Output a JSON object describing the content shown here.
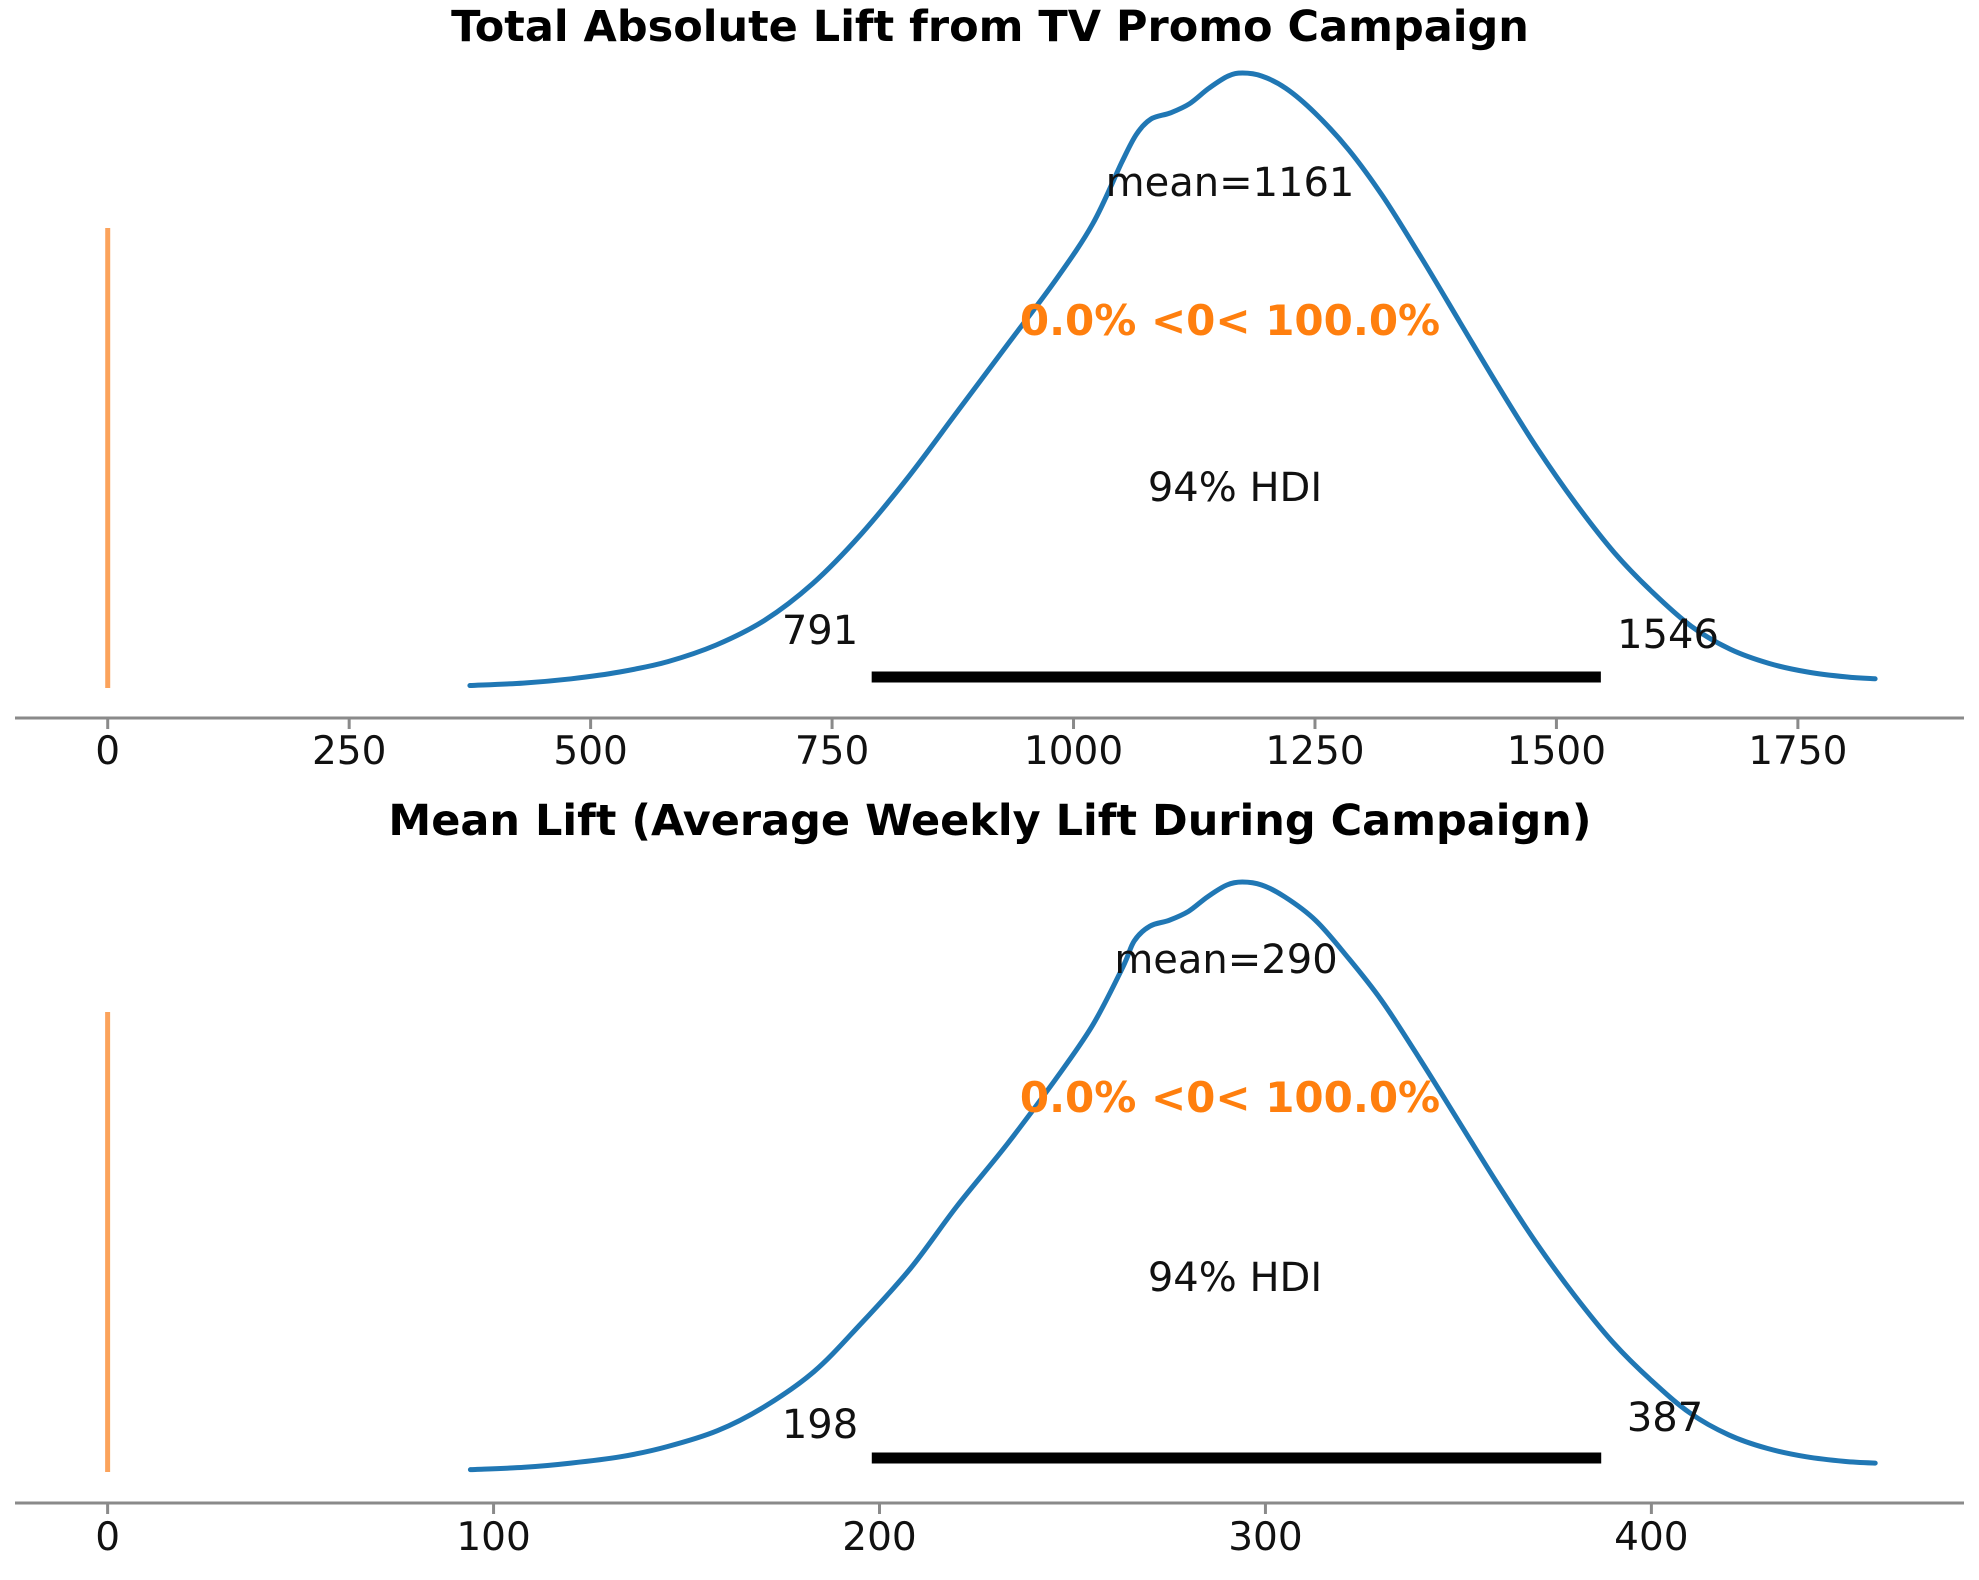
{
  "page": {
    "background": "#ffffff"
  },
  "colors": {
    "curve": "#2077b4",
    "ref_line": "#fba35c",
    "prob_text": "#ff7f0e",
    "hdi_bar": "#000000",
    "axis": "#8a8a8a",
    "text": "#111111"
  },
  "chart_data": [
    {
      "type": "line",
      "title": "Total Absolute Lift from TV Promo Campaign",
      "mean": 1161,
      "ref_value": 0,
      "hdi_probability": "94%",
      "hdi_94": [
        791,
        1546
      ],
      "prob_below_ref": "0.0%",
      "prob_above_ref": "100.0%",
      "annotations": {
        "mean_label": "mean=1161",
        "prob_label": "0.0% <0< 100.0%",
        "hdi_label": "94% HDI",
        "hdi_low_label": "791",
        "hdi_high_label": "1546"
      },
      "xlim": [
        -96,
        1922
      ],
      "xticks": [
        "0",
        "250",
        "500",
        "750",
        "1000",
        "1250",
        "1500",
        "1750"
      ],
      "xtick_values": [
        0,
        250,
        500,
        750,
        1000,
        1250,
        1500,
        1750
      ],
      "grid": false,
      "legend": "none",
      "kde": {
        "x": [
          375,
          430,
          480,
          530,
          580,
          630,
          680,
          730,
          780,
          830,
          880,
          930,
          980,
          1020,
          1050,
          1065,
          1080,
          1100,
          1120,
          1140,
          1160,
          1175,
          1195,
          1220,
          1250,
          1285,
          1320,
          1360,
          1400,
          1440,
          1480,
          1520,
          1560,
          1600,
          1640,
          1680,
          1720,
          1760,
          1800,
          1830
        ],
        "density": [
          0.004,
          0.008,
          0.015,
          0.026,
          0.043,
          0.07,
          0.11,
          0.17,
          0.25,
          0.345,
          0.45,
          0.555,
          0.66,
          0.755,
          0.855,
          0.9,
          0.925,
          0.935,
          0.95,
          0.975,
          0.995,
          1.0,
          0.995,
          0.975,
          0.935,
          0.875,
          0.8,
          0.7,
          0.595,
          0.49,
          0.39,
          0.3,
          0.22,
          0.155,
          0.1,
          0.063,
          0.04,
          0.026,
          0.018,
          0.015
        ]
      }
    },
    {
      "type": "line",
      "title": "Mean Lift (Average Weekly Lift During Campaign)",
      "mean": 290,
      "ref_value": 0,
      "hdi_probability": "94%",
      "hdi_94": [
        198,
        387
      ],
      "prob_below_ref": "0.0%",
      "prob_above_ref": "100.0%",
      "annotations": {
        "mean_label": "mean=290",
        "prob_label": "0.0% <0< 100.0%",
        "hdi_label": "94% HDI",
        "hdi_low_label": "198",
        "hdi_high_label": "387"
      },
      "xlim": [
        -24,
        481
      ],
      "xticks": [
        "0",
        "100",
        "200",
        "300",
        "400"
      ],
      "xtick_values": [
        0,
        100,
        200,
        300,
        400
      ],
      "grid": false,
      "legend": "none",
      "kde": {
        "x": [
          94,
          108,
          120,
          133,
          145,
          158,
          170,
          183,
          195,
          208,
          220,
          233,
          245,
          255,
          263,
          266,
          270,
          275,
          280,
          285,
          290,
          294,
          299,
          305,
          313,
          321,
          330,
          340,
          350,
          360,
          370,
          380,
          390,
          400,
          410,
          420,
          430,
          440,
          450,
          458
        ],
        "density": [
          0.004,
          0.008,
          0.015,
          0.026,
          0.043,
          0.07,
          0.11,
          0.17,
          0.25,
          0.345,
          0.45,
          0.555,
          0.66,
          0.755,
          0.855,
          0.9,
          0.925,
          0.935,
          0.95,
          0.975,
          0.995,
          1.0,
          0.995,
          0.975,
          0.935,
          0.875,
          0.8,
          0.7,
          0.595,
          0.49,
          0.39,
          0.3,
          0.22,
          0.155,
          0.1,
          0.063,
          0.04,
          0.026,
          0.018,
          0.015
        ]
      }
    }
  ]
}
